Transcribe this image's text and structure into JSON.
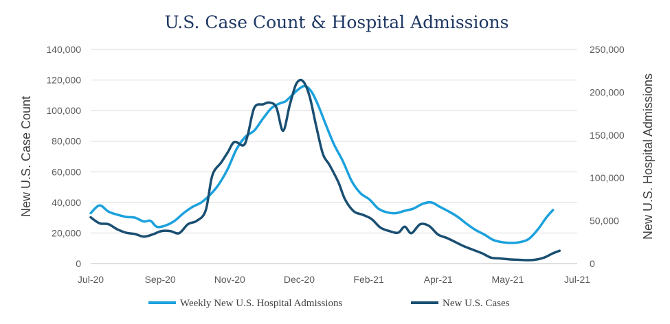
{
  "chart_data": {
    "type": "line",
    "title": "U.S. Case Count & Hospital Admissions",
    "ylabel": "New U.S. Case Count",
    "y2label": "New U.S. Hospital Admissions",
    "ylim": [
      0,
      140000
    ],
    "y2lim": [
      0,
      250000
    ],
    "yticks": [
      "0",
      "20,000",
      "40,000",
      "60,000",
      "80,000",
      "100,000",
      "120,000",
      "140,000"
    ],
    "y2ticks": [
      "0",
      "50,000",
      "100,000",
      "150,000",
      "200,000",
      "250,000"
    ],
    "xticks": [
      "Jul-20",
      "Sep-20",
      "Nov-20",
      "Dec-20",
      "Feb-21",
      "Apr-21",
      "May-21",
      "Jul-21"
    ],
    "legend_position": "bottom",
    "grid": true,
    "series": [
      {
        "name": "Weekly New U.S. Hospital Admissions",
        "axis": "left",
        "color": "#1ba1dd",
        "points": [
          [
            0,
            33000
          ],
          [
            0.2,
            38000
          ],
          [
            0.4,
            34000
          ],
          [
            0.6,
            32000
          ],
          [
            0.8,
            30500
          ],
          [
            1.0,
            30000
          ],
          [
            1.2,
            27500
          ],
          [
            1.35,
            28000
          ],
          [
            1.5,
            24000
          ],
          [
            1.7,
            25000
          ],
          [
            1.9,
            28000
          ],
          [
            2.1,
            33000
          ],
          [
            2.3,
            37000
          ],
          [
            2.5,
            40000
          ],
          [
            2.7,
            45000
          ],
          [
            2.9,
            52000
          ],
          [
            3.1,
            62000
          ],
          [
            3.3,
            75000
          ],
          [
            3.5,
            83000
          ],
          [
            3.7,
            87000
          ],
          [
            3.9,
            95000
          ],
          [
            4.1,
            102000
          ],
          [
            4.3,
            105000
          ],
          [
            4.4,
            106000
          ],
          [
            4.55,
            110000
          ],
          [
            4.7,
            114000
          ],
          [
            4.85,
            116000
          ],
          [
            5.0,
            112000
          ],
          [
            5.15,
            103000
          ],
          [
            5.3,
            92000
          ],
          [
            5.5,
            78000
          ],
          [
            5.7,
            67000
          ],
          [
            5.9,
            54000
          ],
          [
            6.1,
            46000
          ],
          [
            6.3,
            42000
          ],
          [
            6.5,
            36000
          ],
          [
            6.7,
            33500
          ],
          [
            6.9,
            33000
          ],
          [
            7.1,
            34500
          ],
          [
            7.3,
            36000
          ],
          [
            7.5,
            39000
          ],
          [
            7.7,
            40000
          ],
          [
            7.9,
            37000
          ],
          [
            8.1,
            34000
          ],
          [
            8.3,
            30500
          ],
          [
            8.5,
            26000
          ],
          [
            8.7,
            22000
          ],
          [
            8.9,
            19000
          ],
          [
            9.1,
            15500
          ],
          [
            9.3,
            14000
          ],
          [
            9.5,
            13500
          ],
          [
            9.7,
            14000
          ],
          [
            9.9,
            16000
          ],
          [
            10.1,
            22000
          ],
          [
            10.3,
            30000
          ],
          [
            10.45,
            35000
          ]
        ]
      },
      {
        "name": "New U.S. Cases",
        "axis": "right",
        "color": "#1a4f72",
        "points": [
          [
            0,
            54000
          ],
          [
            0.2,
            47000
          ],
          [
            0.4,
            46000
          ],
          [
            0.6,
            40000
          ],
          [
            0.8,
            36000
          ],
          [
            1.0,
            34500
          ],
          [
            1.2,
            31500
          ],
          [
            1.4,
            34000
          ],
          [
            1.6,
            38000
          ],
          [
            1.8,
            38000
          ],
          [
            2.0,
            35500
          ],
          [
            2.2,
            46000
          ],
          [
            2.4,
            50000
          ],
          [
            2.6,
            62000
          ],
          [
            2.75,
            103000
          ],
          [
            2.95,
            118000
          ],
          [
            3.1,
            130000
          ],
          [
            3.25,
            142000
          ],
          [
            3.45,
            138000
          ],
          [
            3.55,
            150000
          ],
          [
            3.7,
            182000
          ],
          [
            3.9,
            186000
          ],
          [
            4.05,
            188000
          ],
          [
            4.2,
            182000
          ],
          [
            4.35,
            155000
          ],
          [
            4.5,
            185000
          ],
          [
            4.65,
            210000
          ],
          [
            4.8,
            213000
          ],
          [
            4.95,
            195000
          ],
          [
            5.1,
            160000
          ],
          [
            5.25,
            128000
          ],
          [
            5.4,
            115000
          ],
          [
            5.6,
            95000
          ],
          [
            5.75,
            75000
          ],
          [
            5.95,
            61000
          ],
          [
            6.15,
            57000
          ],
          [
            6.35,
            52000
          ],
          [
            6.55,
            42000
          ],
          [
            6.75,
            38000
          ],
          [
            6.95,
            36000
          ],
          [
            7.1,
            43000
          ],
          [
            7.25,
            35500
          ],
          [
            7.45,
            46000
          ],
          [
            7.65,
            44000
          ],
          [
            7.85,
            34000
          ],
          [
            8.05,
            30000
          ],
          [
            8.25,
            25000
          ],
          [
            8.45,
            20000
          ],
          [
            8.65,
            16000
          ],
          [
            8.85,
            12000
          ],
          [
            9.05,
            7000
          ],
          [
            9.25,
            6000
          ],
          [
            9.45,
            5000
          ],
          [
            9.65,
            4500
          ],
          [
            9.85,
            4000
          ],
          [
            10.05,
            4500
          ],
          [
            10.25,
            7000
          ],
          [
            10.45,
            12000
          ],
          [
            10.6,
            15000
          ]
        ]
      }
    ]
  }
}
